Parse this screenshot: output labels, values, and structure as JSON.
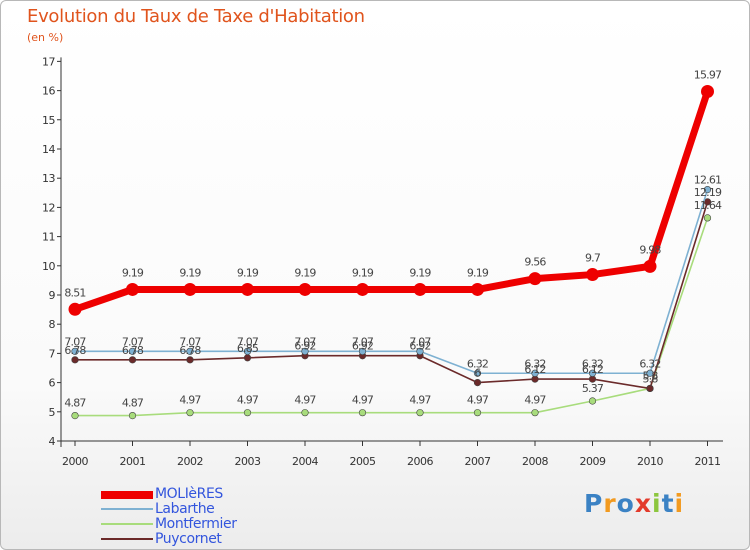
{
  "title": "Evolution du Taux de Taxe d'Habitation",
  "subtitle": "(en %)",
  "logo": {
    "text": "Proxiti",
    "letters": [
      "P",
      "r",
      "o",
      "x",
      "i",
      "t",
      "i"
    ],
    "colors": [
      "#3b82c4",
      "#f29a1f",
      "#3b82c4",
      "#e33a2b",
      "#8cc63e",
      "#3b82c4",
      "#f29a1f"
    ]
  },
  "chart_data": {
    "type": "line",
    "title": "Evolution du Taux de Taxe d'Habitation",
    "ylabel": "(en %)",
    "xlabel": "",
    "categories": [
      "2000",
      "2001",
      "2002",
      "2003",
      "2004",
      "2005",
      "2006",
      "2007",
      "2008",
      "2009",
      "2010",
      "2011"
    ],
    "ylim": [
      4,
      17
    ],
    "yticks": [
      "4",
      "5",
      "6",
      "7",
      "8",
      "9",
      "10",
      "11",
      "12",
      "13",
      "14",
      "15",
      "16",
      "17"
    ],
    "grid": false,
    "series": [
      {
        "name": "MOLIèRES",
        "color": "#ee0000",
        "values": [
          8.51,
          9.19,
          9.19,
          9.19,
          9.19,
          9.19,
          9.19,
          9.19,
          9.56,
          9.7,
          9.98,
          15.97
        ],
        "labels": [
          "8.51",
          "9.19",
          "9.19",
          "9.19",
          "9.19",
          "9.19",
          "9.19",
          "9.19",
          "9.56",
          "9.7",
          "9.98",
          "15.97"
        ]
      },
      {
        "name": "Labarthe",
        "color": "#7eb1d2",
        "values": [
          7.07,
          7.07,
          7.07,
          7.07,
          7.07,
          7.07,
          7.07,
          6.32,
          6.32,
          6.32,
          6.32,
          12.61
        ],
        "labels": [
          "7.07",
          "7.07",
          "7.07",
          "7.07",
          "7.07",
          "7.07",
          "7.07",
          "6.32",
          "6.32",
          "6.32",
          "6.32",
          "12.61"
        ]
      },
      {
        "name": "Montfermier",
        "color": "#a8dc7c",
        "values": [
          4.87,
          4.87,
          4.97,
          4.97,
          4.97,
          4.97,
          4.97,
          4.97,
          4.97,
          5.37,
          5.8,
          11.64
        ],
        "labels": [
          "4.87",
          "4.87",
          "4.97",
          "4.97",
          "4.97",
          "4.97",
          "4.97",
          "4.97",
          "4.97",
          "5.37",
          "5.8",
          "11.64"
        ]
      },
      {
        "name": "Puycornet",
        "color": "#6b2a2a",
        "values": [
          6.78,
          6.78,
          6.78,
          6.85,
          6.92,
          6.92,
          6.92,
          6.0,
          6.12,
          6.12,
          5.8,
          12.19
        ],
        "labels": [
          "6.78",
          "6.78",
          "6.78",
          "6.85",
          "6.92",
          "6.92",
          "6.92",
          "6",
          "6.12",
          "6.12",
          "5.8",
          "12.19"
        ]
      }
    ]
  },
  "legend": [
    {
      "label": "MOLIèRES",
      "color": "#ee0000"
    },
    {
      "label": "Labarthe",
      "color": "#7eb1d2"
    },
    {
      "label": "Montfermier",
      "color": "#a8dc7c"
    },
    {
      "label": "Puycornet",
      "color": "#6b2a2a"
    }
  ]
}
